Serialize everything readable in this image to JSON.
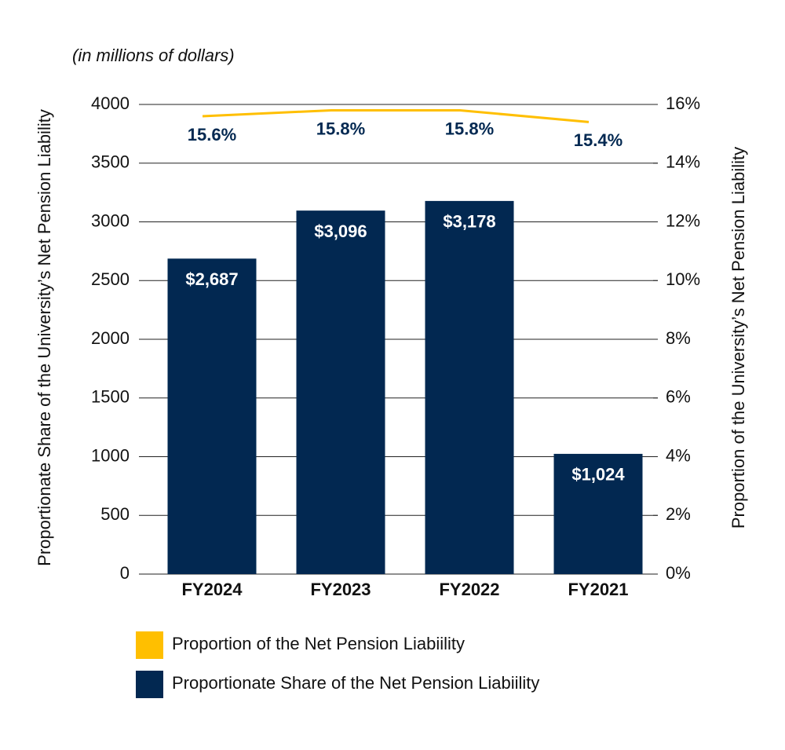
{
  "chart_data": {
    "type": "bar",
    "subtitle": "(in millions of dollars)",
    "y_label": "Proportionate Share of the University’s Net Pension Liability",
    "y2_label": "Proportion of the University’s Net Pension Liability",
    "categories": [
      "FY2024",
      "FY2023",
      "FY2022",
      "FY2021"
    ],
    "series": [
      {
        "name": "Proportionate Share of the Net Pension Liabiility",
        "type": "bar",
        "color": "#022851",
        "axis": "y",
        "values": [
          2687,
          3096,
          3178,
          1024
        ],
        "value_labels": [
          "$2,687",
          "$3,096",
          "$3,178",
          "$1,024"
        ]
      },
      {
        "name": "Proportion of the Net Pension Liabiility",
        "type": "line",
        "color": "#ffbf00",
        "axis": "y2",
        "values": [
          15.6,
          15.8,
          15.8,
          15.4
        ],
        "value_labels": [
          "15.6%",
          "15.8%",
          "15.8%",
          "15.4%"
        ]
      }
    ],
    "ylim": [
      0,
      4000
    ],
    "yticks": [
      0,
      500,
      1000,
      1500,
      2000,
      2500,
      3000,
      3500,
      4000
    ],
    "y2lim": [
      0,
      16
    ],
    "y2ticks": [
      {
        "value": 0,
        "label": "0%"
      },
      {
        "value": 2,
        "label": "2%"
      },
      {
        "value": 4,
        "label": "4%"
      },
      {
        "value": 6,
        "label": "6%"
      },
      {
        "value": 8,
        "label": "8%"
      },
      {
        "value": 10,
        "label": "10%"
      },
      {
        "value": 12,
        "label": "12%"
      },
      {
        "value": 14,
        "label": "14%"
      },
      {
        "value": 16,
        "label": "16%"
      }
    ],
    "grid": true
  }
}
